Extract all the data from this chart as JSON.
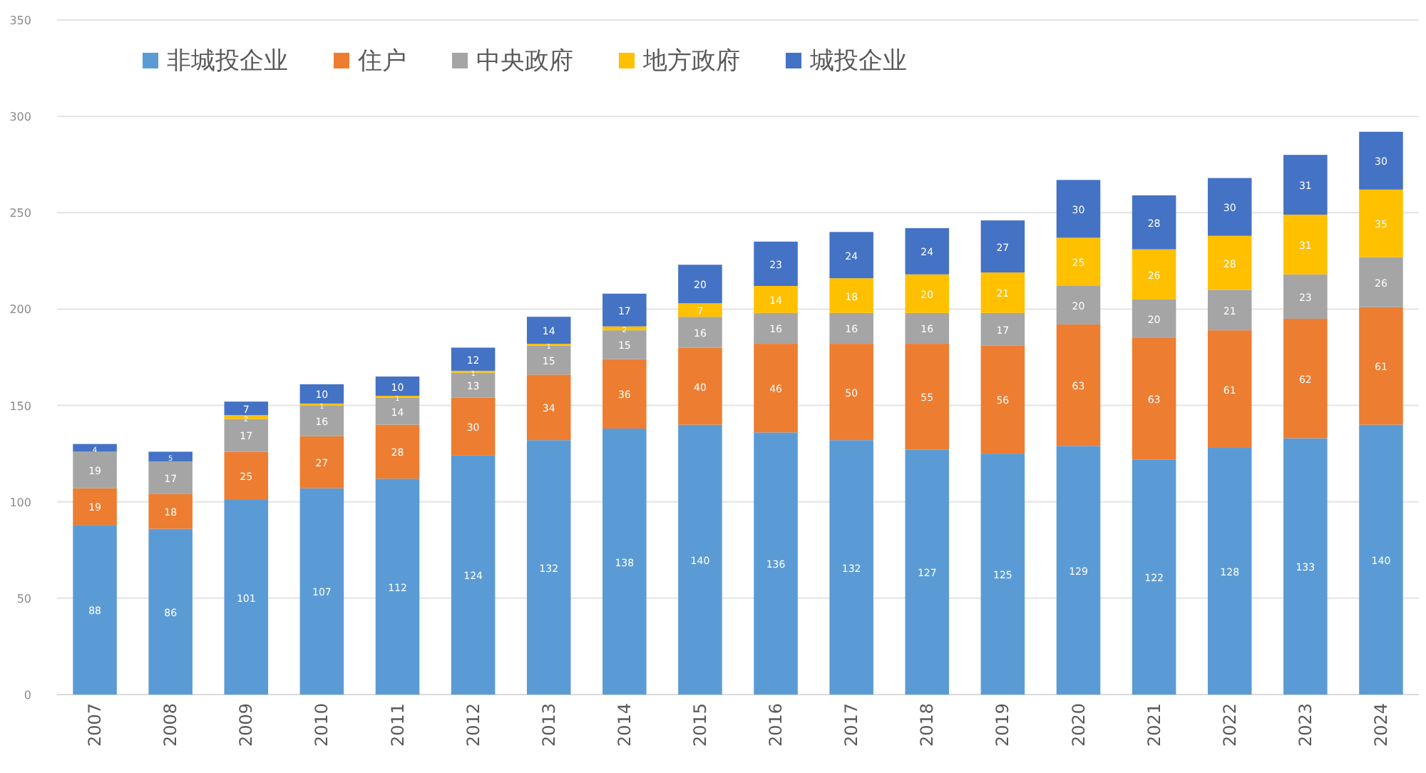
{
  "chart_data": {
    "type": "bar",
    "stacked": true,
    "categories": [
      "2007",
      "2008",
      "2009",
      "2010",
      "2011",
      "2012",
      "2013",
      "2014",
      "2015",
      "2016",
      "2017",
      "2018",
      "2019",
      "2020",
      "2021",
      "2022",
      "2023",
      "2024"
    ],
    "series": [
      {
        "name": "非城投企业",
        "color": "#5b9bd5",
        "values": [
          88,
          86,
          101,
          107,
          112,
          124,
          132,
          138,
          140,
          136,
          132,
          127,
          125,
          129,
          122,
          128,
          133,
          140
        ]
      },
      {
        "name": "住户",
        "color": "#ed7d31",
        "values": [
          19,
          18,
          25,
          27,
          28,
          30,
          34,
          36,
          40,
          46,
          50,
          55,
          56,
          63,
          63,
          61,
          62,
          61
        ]
      },
      {
        "name": "中央政府",
        "color": "#a5a5a5",
        "values": [
          19,
          17,
          17,
          16,
          14,
          13,
          15,
          15,
          16,
          16,
          16,
          16,
          17,
          20,
          20,
          21,
          23,
          26
        ]
      },
      {
        "name": "地方政府",
        "color": "#ffc000",
        "values": [
          null,
          null,
          2,
          1,
          1,
          1,
          1,
          2,
          7,
          14,
          18,
          20,
          21,
          25,
          26,
          28,
          31,
          35
        ]
      },
      {
        "name": "城投企业",
        "color": "#4472c4",
        "values": [
          4,
          5,
          7,
          10,
          10,
          12,
          14,
          17,
          20,
          23,
          24,
          24,
          27,
          30,
          28,
          30,
          31,
          30
        ]
      }
    ],
    "ylim": [
      0,
      350
    ],
    "yticks": [
      0,
      50,
      100,
      150,
      200,
      250,
      300,
      350
    ],
    "grid": "y",
    "legend": "top",
    "data_labels": true
  }
}
